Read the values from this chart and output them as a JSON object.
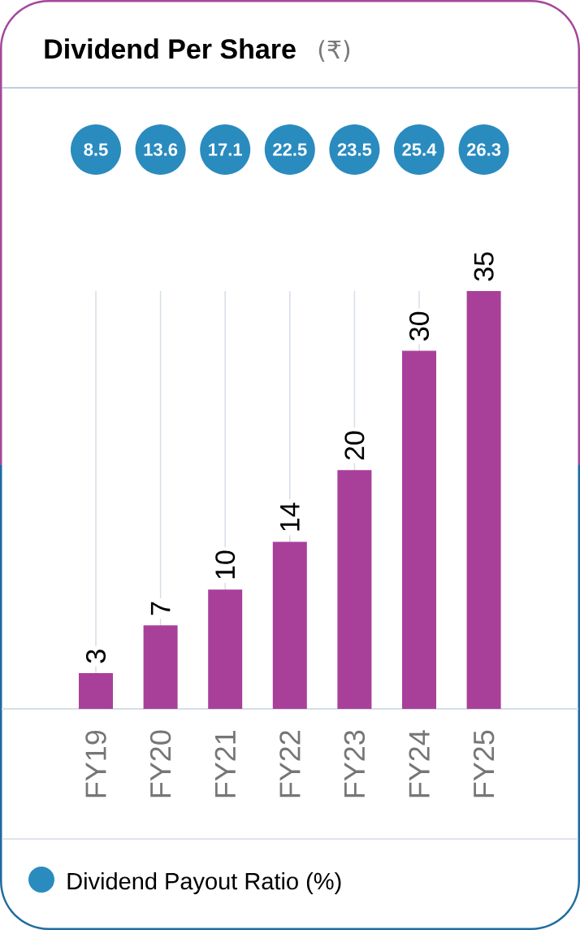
{
  "chart_data": [
    {
      "type": "bar",
      "title": "Dividend Per Share",
      "subtitle": "(₹)",
      "categories": [
        "FY19",
        "FY20",
        "FY21",
        "FY22",
        "FY23",
        "FY24",
        "FY25"
      ],
      "series": [
        {
          "color": "#a8409a",
          "values": [
            3,
            7,
            10,
            14,
            20,
            30,
            35
          ]
        }
      ],
      "data_labels": true,
      "grid": "x",
      "tick_labels": "x"
    },
    {
      "type": "other",
      "series": [
        {
          "name": "Dividend Payout Ratio (%)",
          "color": "#2a8bbf",
          "values": [
            8.5,
            13.6,
            17.1,
            22.5,
            23.5,
            25.4,
            26.3
          ]
        }
      ],
      "data_labels": true,
      "legend": "bottom left"
    }
  ]
}
